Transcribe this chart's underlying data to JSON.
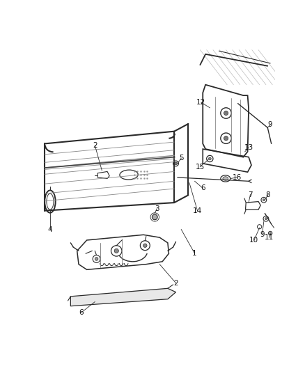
{
  "bg_color": "#ffffff",
  "line_color": "#2a2a2a",
  "gray": "#888888",
  "lightgray": "#bbbbbb",
  "label_fs": 7.5
}
